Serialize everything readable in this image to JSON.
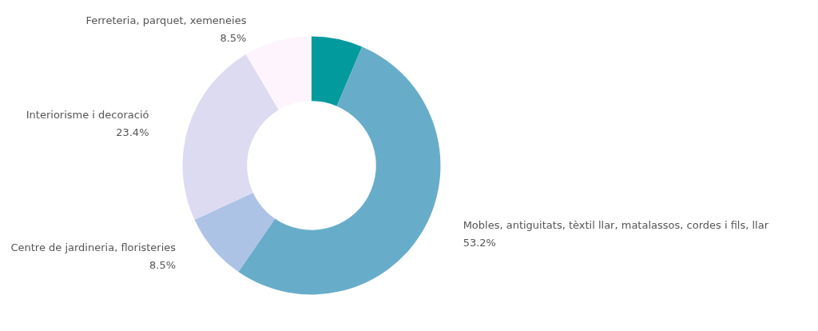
{
  "chart_data": {
    "type": "donut",
    "categories": [
      null,
      "Mobles, antiguitats, tèxtil llar, matalassos, cordes i fils, llar",
      "Centre de jardineria, floristeries",
      "Interiorisme i decoració",
      "Ferreteria, parquet, xemeneies"
    ],
    "values": [
      6.4,
      53.2,
      8.5,
      23.4,
      8.5
    ],
    "value_labels": [
      null,
      "53.2%",
      "8.5%",
      "23.4%",
      "8.5%"
    ],
    "colors": [
      "#039a9e",
      "#67adc9",
      "#adc3e6",
      "#dddbf2",
      "#fdf4fd"
    ],
    "legend": false
  }
}
